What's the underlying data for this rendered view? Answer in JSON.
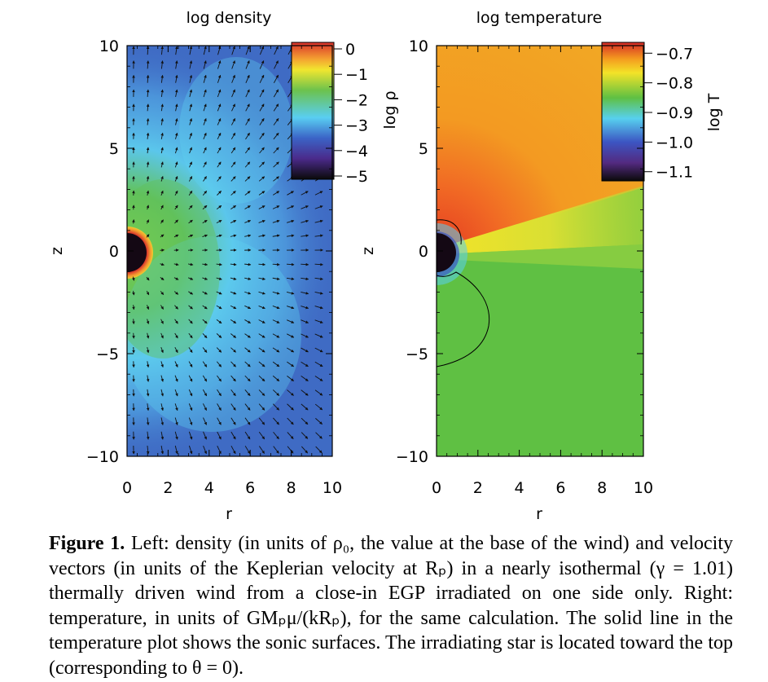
{
  "figure": {
    "left_panel": {
      "title": "log density",
      "xlabel": "r",
      "ylabel": "z",
      "xticks": [
        "0",
        "2",
        "4",
        "6",
        "8",
        "10"
      ],
      "yticks": [
        "10",
        "5",
        "0",
        "−5",
        "−10"
      ],
      "colorbar": {
        "label": "log ρ",
        "ticks": [
          "0",
          "−1",
          "−2",
          "−3",
          "−4",
          "−5"
        ],
        "range": [
          -5,
          0
        ]
      }
    },
    "right_panel": {
      "title": "log temperature",
      "xlabel": "r",
      "ylabel": "z",
      "xticks": [
        "0",
        "2",
        "4",
        "6",
        "8",
        "10"
      ],
      "yticks": [
        "10",
        "5",
        "0",
        "−5",
        "−10"
      ],
      "colorbar": {
        "label": "log T",
        "ticks": [
          "−0.7",
          "−0.8",
          "−0.9",
          "−1.0",
          "−1.1"
        ],
        "range": [
          -1.12,
          -0.68
        ]
      }
    },
    "colors": {
      "density_background": "#3f6bc4",
      "density_mid": "#5ed0f0",
      "density_high": "#62c25a",
      "planet": "#140814",
      "temperature_background": "#5fc043",
      "temperature_hot": "#f0a21e"
    }
  },
  "caption": {
    "label": "Figure 1.",
    "text": " Left: density (in units of ρ₀, the value at the base of the wind) and velocity vectors (in units of the Keplerian velocity at Rₚ) in a nearly isothermal (γ = 1.01) thermally driven wind from a close-in EGP irradiated on one side only. Right: temperature, in units of GMₚμ/(kRₚ), for the same calculation. The solid line in the temperature plot shows the sonic surfaces. The irradiating star is located toward the top (corresponding to θ = 0)."
  }
}
